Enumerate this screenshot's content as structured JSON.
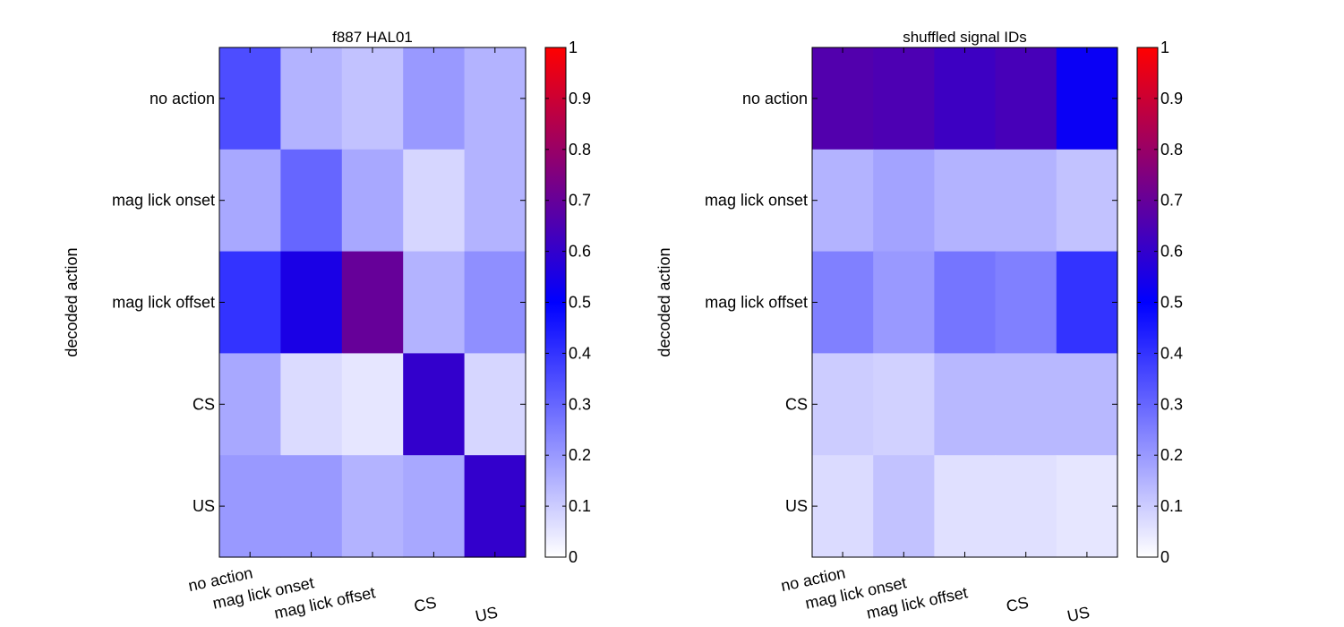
{
  "chart_data": [
    {
      "type": "heatmap",
      "title": "f887 HAL01",
      "ylabel": "decoded action",
      "xlabel": "",
      "x_categories": [
        "no action",
        "mag lick  onset",
        "mag lick  offset",
        "CS",
        "US"
      ],
      "y_categories": [
        "no action",
        "mag lick  onset",
        "mag lick  offset",
        "CS",
        "US"
      ],
      "values": [
        [
          0.35,
          0.15,
          0.12,
          0.2,
          0.15
        ],
        [
          0.17,
          0.3,
          0.17,
          0.08,
          0.15
        ],
        [
          0.4,
          0.55,
          0.7,
          0.15,
          0.22
        ],
        [
          0.17,
          0.07,
          0.05,
          0.6,
          0.08
        ],
        [
          0.2,
          0.2,
          0.15,
          0.17,
          0.6
        ]
      ],
      "colorbar": {
        "range": [
          0,
          1
        ],
        "ticks": [
          "0",
          "0.1",
          "0.2",
          "0.3",
          "0.4",
          "0.5",
          "0.6",
          "0.7",
          "0.8",
          "0.9",
          "1"
        ]
      },
      "colormap": [
        "#ffffff",
        "#0000ff",
        "#ff0000"
      ],
      "grid": false
    },
    {
      "type": "heatmap",
      "title": "shuffled signal IDs",
      "ylabel": "decoded action",
      "xlabel": "",
      "x_categories": [
        "no action",
        "mag lick  onset",
        "mag lick  offset",
        "CS",
        "US"
      ],
      "y_categories": [
        "no action",
        "mag lick  onset",
        "mag lick  offset",
        "CS",
        "US"
      ],
      "values": [
        [
          0.66,
          0.65,
          0.62,
          0.64,
          0.52
        ],
        [
          0.15,
          0.18,
          0.15,
          0.15,
          0.12
        ],
        [
          0.25,
          0.2,
          0.27,
          0.25,
          0.4
        ],
        [
          0.1,
          0.09,
          0.14,
          0.14,
          0.14
        ],
        [
          0.07,
          0.12,
          0.06,
          0.06,
          0.05
        ]
      ],
      "colorbar": {
        "range": [
          0,
          1
        ],
        "ticks": [
          "0",
          "0.1",
          "0.2",
          "0.3",
          "0.4",
          "0.5",
          "0.6",
          "0.7",
          "0.8",
          "0.9",
          "1"
        ]
      },
      "colormap": [
        "#ffffff",
        "#0000ff",
        "#ff0000"
      ],
      "grid": false
    }
  ]
}
